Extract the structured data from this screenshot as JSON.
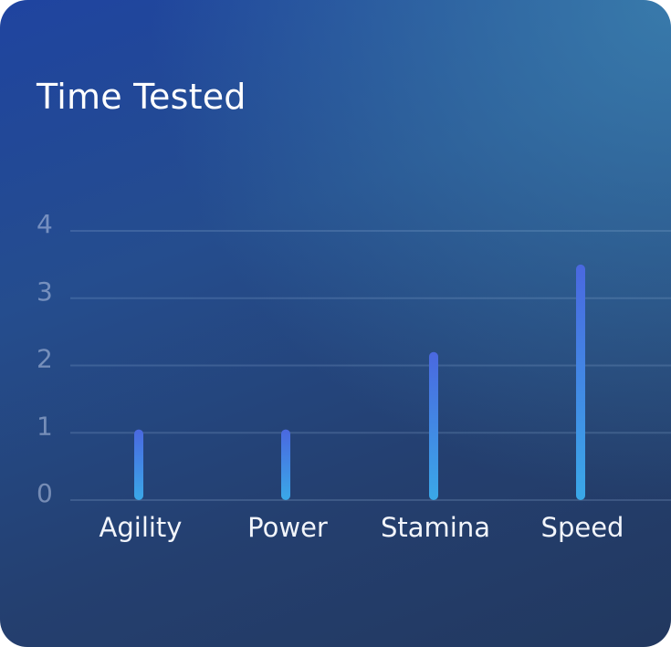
{
  "chart_data": {
    "type": "bar",
    "title": "Time Tested",
    "categories": [
      "Agility",
      "Power",
      "Stamina",
      "Speed"
    ],
    "values": [
      1.05,
      1.05,
      2.2,
      3.5
    ],
    "yticks": [
      "0",
      "1",
      "2",
      "3",
      "4"
    ],
    "ylim": [
      0,
      4
    ],
    "xlabel": "",
    "ylabel": "",
    "grid": true,
    "legend": "none",
    "colors": {
      "bar_top": "#4a68e0",
      "bar_bottom": "#3aa8e8"
    }
  }
}
